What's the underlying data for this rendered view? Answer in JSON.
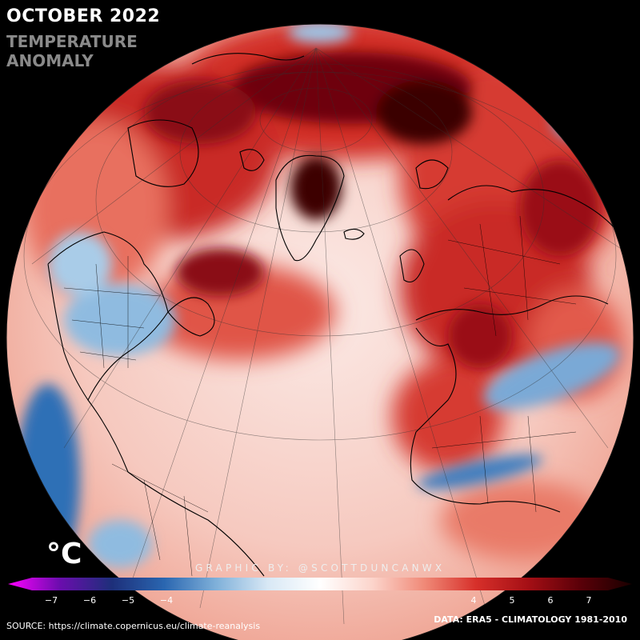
{
  "title": "OCTOBER 2022",
  "subtitle_line1": "TEMPERATURE",
  "subtitle_line2": "ANOMALY",
  "unit": "°C",
  "credit": "GRAPHIC BY: @SCOTTDUNCANWX",
  "source": "SOURCE: https://climate.copernicus.eu/climate-reanalysis",
  "data_note": "DATA: ERA5 - CLIMATOLOGY 1981-2010",
  "colorbar": {
    "min": -7.5,
    "max": 7.5,
    "ticks": [
      -7,
      -6,
      -5,
      -4,
      4,
      5,
      6,
      7
    ],
    "tick_labels": [
      "−7",
      "−6",
      "−5",
      "−4",
      "4",
      "5",
      "6",
      "7"
    ],
    "stops": [
      "#ff00ff",
      "#6a0dad",
      "#1d2f7a",
      "#2a66b0",
      "#7fb0d9",
      "#d8e8f5",
      "#ffffff",
      "#fcd5cc",
      "#f08a78",
      "#d7302a",
      "#a50f15",
      "#5a0008",
      "#1a0000"
    ]
  },
  "colors": {
    "warm": "#e04a3f",
    "hot": "#a5121a",
    "extreme": "#3a0006",
    "neutral": "#fbe6e1",
    "cool": "#8fbbe0",
    "cold": "#2f6fb6"
  }
}
